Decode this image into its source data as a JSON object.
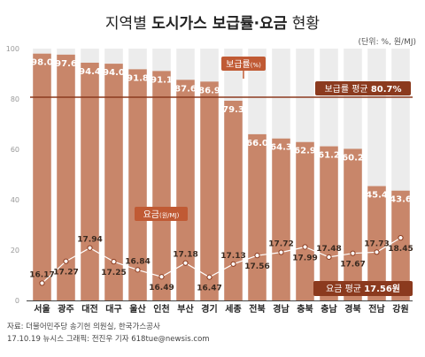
{
  "title_prefix": "지역별",
  "title_main": "도시가스 보급률·요금",
  "title_suffix": "현황",
  "unit": "(단위: %, 원/MJ)",
  "source": "자료: 더불어민주당 송기헌 의원실, 한국가스공사",
  "credit": "17.10.19 뉴시스 그래픽: 전진우 기자 618tue@newsis.com",
  "colors": {
    "bar": "#c8866a",
    "bar_track": "#ececec",
    "avg_line": "#8b3a1e",
    "badge": "#c05a34",
    "avg_badge": "#8b3a1e",
    "price_line": "#ffffff"
  },
  "chart_data": {
    "type": "bar",
    "categories": [
      "서울",
      "광주",
      "대전",
      "대구",
      "울산",
      "인천",
      "부산",
      "경기",
      "세종",
      "전북",
      "경남",
      "충북",
      "충남",
      "경북",
      "전남",
      "강원"
    ],
    "series": [
      {
        "name": "보급률(%)",
        "values": [
          98.0,
          97.6,
          94.4,
          94.0,
          91.8,
          91.1,
          87.6,
          86.9,
          79.3,
          66.0,
          64.3,
          62.9,
          61.2,
          60.2,
          45.4,
          43.6
        ],
        "labels": [
          "98.0",
          "97.6",
          "94.4",
          "94.0",
          "91.8",
          "91.1",
          "87.6",
          "86.9",
          "79.3",
          "66.0",
          "64.3",
          "62.9",
          "61.2",
          "60.2",
          "45.4",
          "43.6"
        ],
        "label": "보급률",
        "unit": "(%)"
      },
      {
        "name": "요금(원/MJ)",
        "values": [
          16.17,
          17.27,
          17.94,
          17.25,
          16.84,
          16.49,
          17.18,
          16.47,
          17.13,
          17.56,
          17.72,
          17.99,
          17.48,
          17.67,
          17.73,
          18.45
        ],
        "labels": [
          "16.17",
          "17.27",
          "17.94",
          "17.25",
          "16.84",
          "16.49",
          "17.18",
          "16.47",
          "17.13",
          "17.56",
          "17.72",
          "17.99",
          "17.48",
          "17.67",
          "17.73",
          "18.45"
        ],
        "label": "요금",
        "unit": "(원/MJ)"
      }
    ],
    "yticks": [
      "0",
      "20",
      "40",
      "60",
      "80",
      "100"
    ],
    "ylim": [
      0,
      100
    ],
    "averages": {
      "coverage": {
        "label": "보급률 평균",
        "value": 80.7,
        "text": "80.7%"
      },
      "price": {
        "label": "요금 평균",
        "value": 17.56,
        "text": "17.56원"
      }
    },
    "grid": false
  }
}
